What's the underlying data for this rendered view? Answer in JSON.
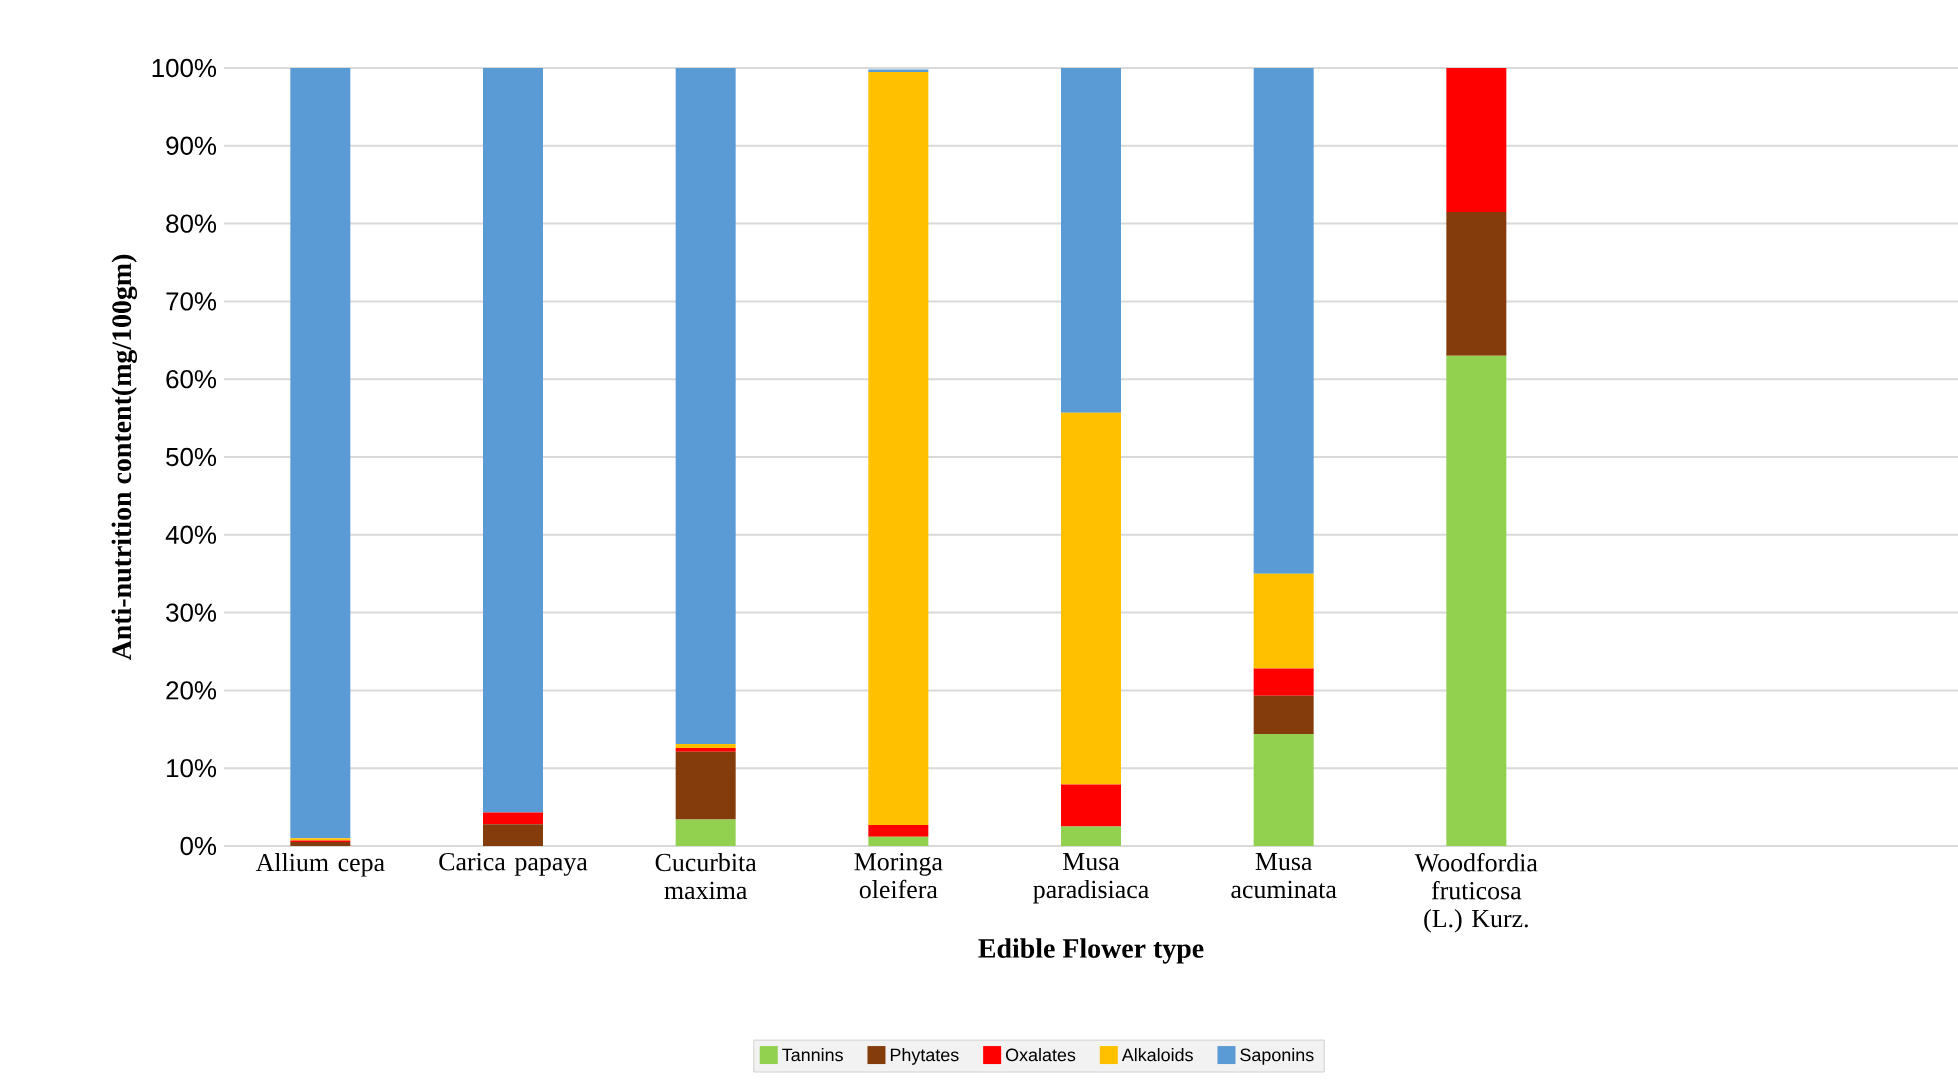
{
  "chart_data": {
    "type": "bar",
    "stacked": true,
    "xlabel": "Edible Flower type",
    "ylabel": "Anti-nutrition content(mg/100gm)",
    "categories": [
      "Allium cepa",
      "Carica papaya",
      "Cucurbita maxima",
      "Moringa oleifera",
      "Musa paradisiaca",
      "Musa acuminata",
      "Woodfordia fruticosa (L.) Kurz.",
      null,
      null
    ],
    "series": [
      {
        "name": "Tannins",
        "color": "#92d050",
        "values": [
          0,
          0,
          3.4,
          1.2,
          2.5,
          14.4,
          63,
          null,
          null
        ]
      },
      {
        "name": "Phytates",
        "color": "#843c0c",
        "values": [
          0.5,
          2.8,
          8.7,
          0,
          0,
          4.9,
          18.5,
          null,
          null
        ]
      },
      {
        "name": "Oxalates",
        "color": "#ff0000",
        "values": [
          0.2,
          1.5,
          0.5,
          1.5,
          5.4,
          3.5,
          18.5,
          null,
          null
        ]
      },
      {
        "name": "Alkaloids",
        "color": "#ffc000",
        "values": [
          0.3,
          0,
          0.5,
          96.8,
          47.8,
          12.2,
          0,
          null,
          null
        ]
      },
      {
        "name": "Saponins",
        "color": "#5b9bd5",
        "values": [
          99,
          95.7,
          86.9,
          0.3,
          44.3,
          65,
          0,
          null,
          null
        ]
      }
    ],
    "ylim": [
      0,
      100
    ],
    "yticks": [
      {
        "value": 0,
        "label": "0%"
      },
      {
        "value": 10,
        "label": "10%"
      },
      {
        "value": 20,
        "label": "20%"
      },
      {
        "value": 30,
        "label": "30%"
      },
      {
        "value": 40,
        "label": "40%"
      },
      {
        "value": 50,
        "label": "50%"
      },
      {
        "value": 60,
        "label": "60%"
      },
      {
        "value": 70,
        "label": "70%"
      },
      {
        "value": 80,
        "label": "80%"
      },
      {
        "value": 90,
        "label": "90%"
      },
      {
        "value": 100,
        "label": "100%"
      }
    ],
    "grid": "y",
    "legend": "bottom"
  }
}
